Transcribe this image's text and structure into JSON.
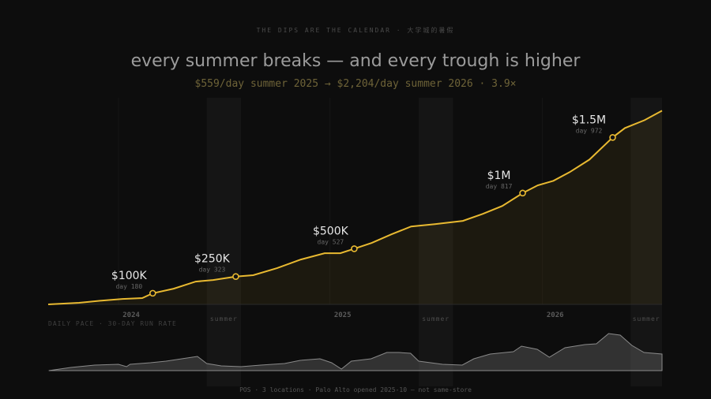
{
  "eyebrow": "THE DIPS ARE THE CALENDAR · 大学城的暑假",
  "title": "every summer breaks — and every trough is higher",
  "subtitle": "$559/day summer 2025 → $2,204/day summer 2026 · 3.9×",
  "footer": "POS · 3 locations · Palo Alto opened 2025-10 — not same-store",
  "chart_data": [
    {
      "type": "line",
      "color": "#e8b931",
      "x": [
        0,
        53,
        94,
        128,
        162,
        180,
        216,
        254,
        284,
        323,
        353,
        394,
        435,
        476,
        503,
        527,
        557,
        591,
        625,
        666,
        714,
        748,
        782,
        817,
        843,
        870,
        898,
        932,
        972,
        993,
        1027,
        1057
      ],
      "values": [
        0,
        14000,
        35000,
        49000,
        57000,
        100000,
        141000,
        205000,
        219000,
        250000,
        262000,
        325000,
        403000,
        460000,
        460000,
        500000,
        552000,
        629000,
        700000,
        721000,
        750000,
        813000,
        884000,
        1000000,
        1070000,
        1110000,
        1188000,
        1301000,
        1500000,
        1584000,
        1655000,
        1740000
      ],
      "xlim": [
        0,
        1057
      ],
      "ylim": [
        0,
        1750000
      ],
      "xticks": [
        {
          "value": 143,
          "label": "2024"
        },
        {
          "value": 507,
          "label": "2025"
        },
        {
          "value": 873,
          "label": "2026"
        }
      ],
      "bands": [
        {
          "from": 273,
          "to": 332,
          "label": "summer"
        },
        {
          "from": 638,
          "to": 697,
          "label": "summer"
        },
        {
          "from": 1003,
          "to": 1057,
          "label": "summer"
        }
      ],
      "points": {
        "x": [
          180,
          323,
          527,
          817,
          972
        ],
        "values": [
          100000,
          250000,
          500000,
          1000000,
          1500000
        ],
        "value_labels": [
          "$100K",
          "$250K",
          "$500K",
          "$1M",
          "$1.5M"
        ],
        "notes": [
          "day 180",
          "day 323",
          "day 527",
          "day 817",
          "day 972"
        ]
      }
    },
    {
      "type": "area",
      "title": "DAILY PACE · 30-DAY RUN RATE",
      "color": "#8a8a8a",
      "x": [
        1,
        39,
        80,
        121,
        135,
        141,
        176,
        203,
        230,
        257,
        273,
        298,
        332,
        366,
        407,
        434,
        468,
        488,
        505,
        522,
        556,
        583,
        604,
        624,
        638,
        679,
        713,
        733,
        761,
        801,
        815,
        842,
        863,
        890,
        924,
        944,
        965,
        985,
        1005,
        1026,
        1057
      ],
      "values": [
        0,
        400,
        700,
        800,
        500,
        800,
        1000,
        1200,
        1500,
        1800,
        900,
        600,
        500,
        700,
        900,
        1300,
        1500,
        1000,
        200,
        1200,
        1500,
        2300,
        2300,
        2200,
        1200,
        800,
        700,
        1500,
        2100,
        2400,
        3100,
        2700,
        1700,
        2900,
        3300,
        3400,
        4700,
        4500,
        3200,
        2300,
        2100
      ],
      "xlim": [
        0,
        1057
      ],
      "ylim": [
        0,
        5000
      ]
    }
  ]
}
